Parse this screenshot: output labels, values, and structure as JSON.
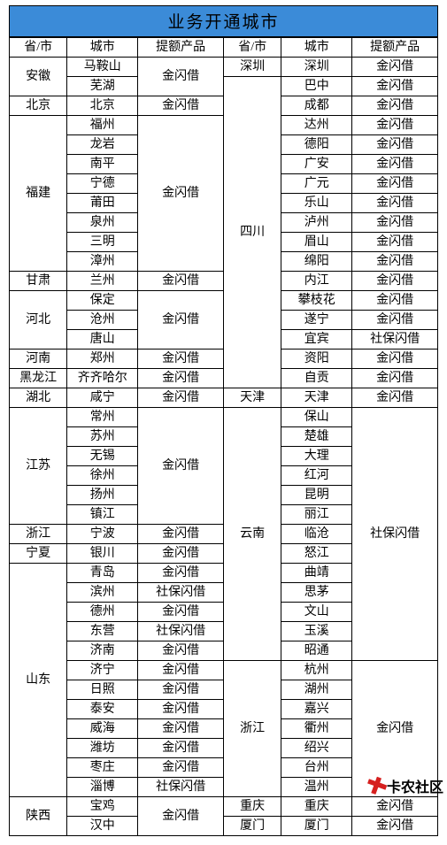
{
  "title": "业务开通城市",
  "header": [
    "省/市",
    "城市",
    "提额产品",
    "省/市",
    "城市",
    "提额产品"
  ],
  "watermark": "卡农社区",
  "colors": {
    "header_bg": "#3b8bd8",
    "border": "#000000",
    "text": "#000000",
    "background": "#ffffff",
    "watermark_icon": "#d6201f"
  },
  "left": [
    {
      "prov": "安徽",
      "items": [
        {
          "city": "马鞍山",
          "prod": "金闪借"
        },
        {
          "city": "芜湖"
        }
      ]
    },
    {
      "prov": "北京",
      "items": [
        {
          "city": "北京",
          "prod": "金闪借"
        }
      ]
    },
    {
      "prov": "福建",
      "items": [
        {
          "city": "福州",
          "prod": "金闪借"
        },
        {
          "city": "龙岩"
        },
        {
          "city": "南平"
        },
        {
          "city": "宁德"
        },
        {
          "city": "莆田"
        },
        {
          "city": "泉州"
        },
        {
          "city": "三明"
        },
        {
          "city": "漳州"
        }
      ]
    },
    {
      "prov": "甘肃",
      "items": [
        {
          "city": "兰州",
          "prod": "金闪借"
        }
      ]
    },
    {
      "prov": "河北",
      "items": [
        {
          "city": "保定",
          "prod": "金闪借"
        },
        {
          "city": "沧州"
        },
        {
          "city": "唐山"
        }
      ]
    },
    {
      "prov": "河南",
      "items": [
        {
          "city": "郑州",
          "prod": "金闪借"
        }
      ]
    },
    {
      "prov": "黑龙江",
      "items": [
        {
          "city": "齐齐哈尔",
          "prod": "金闪借"
        }
      ]
    },
    {
      "prov": "湖北",
      "items": [
        {
          "city": "咸宁",
          "prod": "金闪借"
        }
      ]
    },
    {
      "prov": "江苏",
      "items": [
        {
          "city": "常州",
          "prod": "金闪借"
        },
        {
          "city": "苏州"
        },
        {
          "city": "无锡"
        },
        {
          "city": "徐州"
        },
        {
          "city": "扬州"
        },
        {
          "city": "镇江"
        }
      ]
    },
    {
      "prov": "浙江",
      "items": [
        {
          "city": "宁波",
          "prod": "金闪借"
        }
      ]
    },
    {
      "prov": "宁夏",
      "items": [
        {
          "city": "银川",
          "prod": "金闪借"
        }
      ]
    },
    {
      "prov": "山东",
      "items": [
        {
          "city": "青岛",
          "prod": "金闪借"
        },
        {
          "city": "滨州",
          "prod": "社保闪借"
        },
        {
          "city": "德州",
          "prod": "金闪借"
        },
        {
          "city": "东营",
          "prod": "社保闪借"
        },
        {
          "city": "济南",
          "prod": "金闪借"
        },
        {
          "city": "济宁",
          "prod": "金闪借"
        },
        {
          "city": "日照",
          "prod": "金闪借"
        },
        {
          "city": "泰安",
          "prod": "金闪借"
        },
        {
          "city": "威海",
          "prod": "金闪借"
        },
        {
          "city": "潍坊",
          "prod": "金闪借"
        },
        {
          "city": "枣庄",
          "prod": "金闪借"
        },
        {
          "city": "淄博",
          "prod": "社保闪借"
        }
      ]
    },
    {
      "prov": "陕西",
      "items": [
        {
          "city": "宝鸡",
          "prod": "金闪借"
        },
        {
          "city": "汉中"
        }
      ]
    }
  ],
  "right": [
    {
      "prov": "深圳",
      "items": [
        {
          "city": "深圳",
          "prod": "金闪借"
        }
      ]
    },
    {
      "prov": "四川",
      "items": [
        {
          "city": "巴中",
          "prod": "金闪借"
        },
        {
          "city": "成都",
          "prod": "金闪借"
        },
        {
          "city": "达州",
          "prod": "金闪借"
        },
        {
          "city": "德阳",
          "prod": "金闪借"
        },
        {
          "city": "广安",
          "prod": "金闪借"
        },
        {
          "city": "广元",
          "prod": "金闪借"
        },
        {
          "city": "乐山",
          "prod": "金闪借"
        },
        {
          "city": "泸州",
          "prod": "金闪借"
        },
        {
          "city": "眉山",
          "prod": "金闪借"
        },
        {
          "city": "绵阳",
          "prod": "金闪借"
        },
        {
          "city": "内江",
          "prod": "金闪借"
        },
        {
          "city": "攀枝花",
          "prod": "金闪借"
        },
        {
          "city": "遂宁",
          "prod": "金闪借"
        },
        {
          "city": "宜宾",
          "prod": "社保闪借"
        },
        {
          "city": "资阳",
          "prod": "金闪借"
        },
        {
          "city": "自贡",
          "prod": "金闪借"
        }
      ]
    },
    {
      "prov": "天津",
      "items": [
        {
          "city": "天津",
          "prod": "金闪借"
        }
      ]
    },
    {
      "prov": "云南",
      "items": [
        {
          "city": "保山",
          "prod": "社保闪借"
        },
        {
          "city": "楚雄"
        },
        {
          "city": "大理"
        },
        {
          "city": "红河"
        },
        {
          "city": "昆明"
        },
        {
          "city": "丽江"
        },
        {
          "city": "临沧"
        },
        {
          "city": "怒江"
        },
        {
          "city": "曲靖"
        },
        {
          "city": "思茅"
        },
        {
          "city": "文山"
        },
        {
          "city": "玉溪"
        },
        {
          "city": "昭通"
        }
      ]
    },
    {
      "prov": "浙江",
      "items": [
        {
          "city": "杭州",
          "prod": "金闪借"
        },
        {
          "city": "湖州"
        },
        {
          "city": "嘉兴"
        },
        {
          "city": "衢州"
        },
        {
          "city": "绍兴"
        },
        {
          "city": "台州"
        },
        {
          "city": "温州"
        }
      ]
    },
    {
      "prov": "重庆",
      "items": [
        {
          "city": "重庆",
          "prod": "金闪借"
        }
      ]
    },
    {
      "prov": "厦门",
      "items": [
        {
          "city": "厦门",
          "prod": "金闪借"
        }
      ]
    }
  ]
}
